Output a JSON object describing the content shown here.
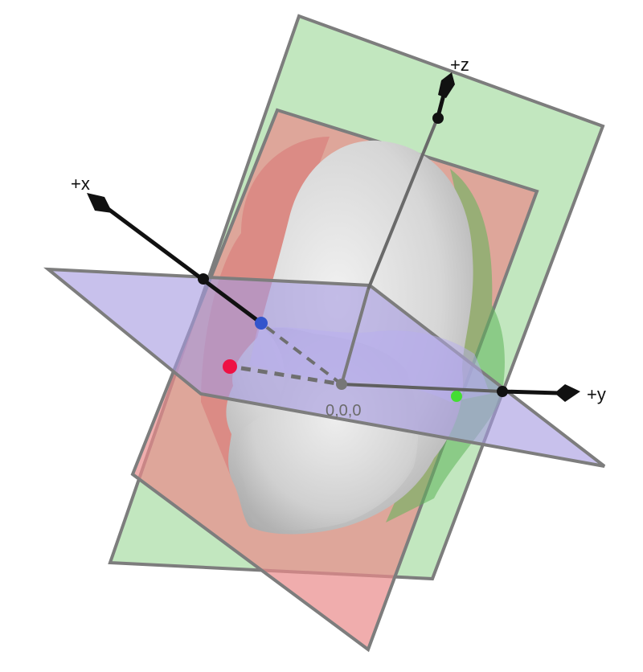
{
  "figure": {
    "axes": {
      "x": {
        "label": "+x"
      },
      "y": {
        "label": "+y"
      },
      "z": {
        "label": "+z"
      }
    },
    "origin_label": "0,0,0",
    "colors": {
      "sagittal_plane": "#e98a8a",
      "coronal_plane": "#8fd38a",
      "axial_plane": "#a79be0",
      "plane_edge": "#7d7d7d",
      "head": "#d9d9d9",
      "axis": "#111111",
      "marker_red": "#ee1144",
      "marker_blue": "#3355cc",
      "marker_green": "#44dd33"
    },
    "markers": [
      "red-point",
      "blue-point",
      "green-point"
    ]
  }
}
